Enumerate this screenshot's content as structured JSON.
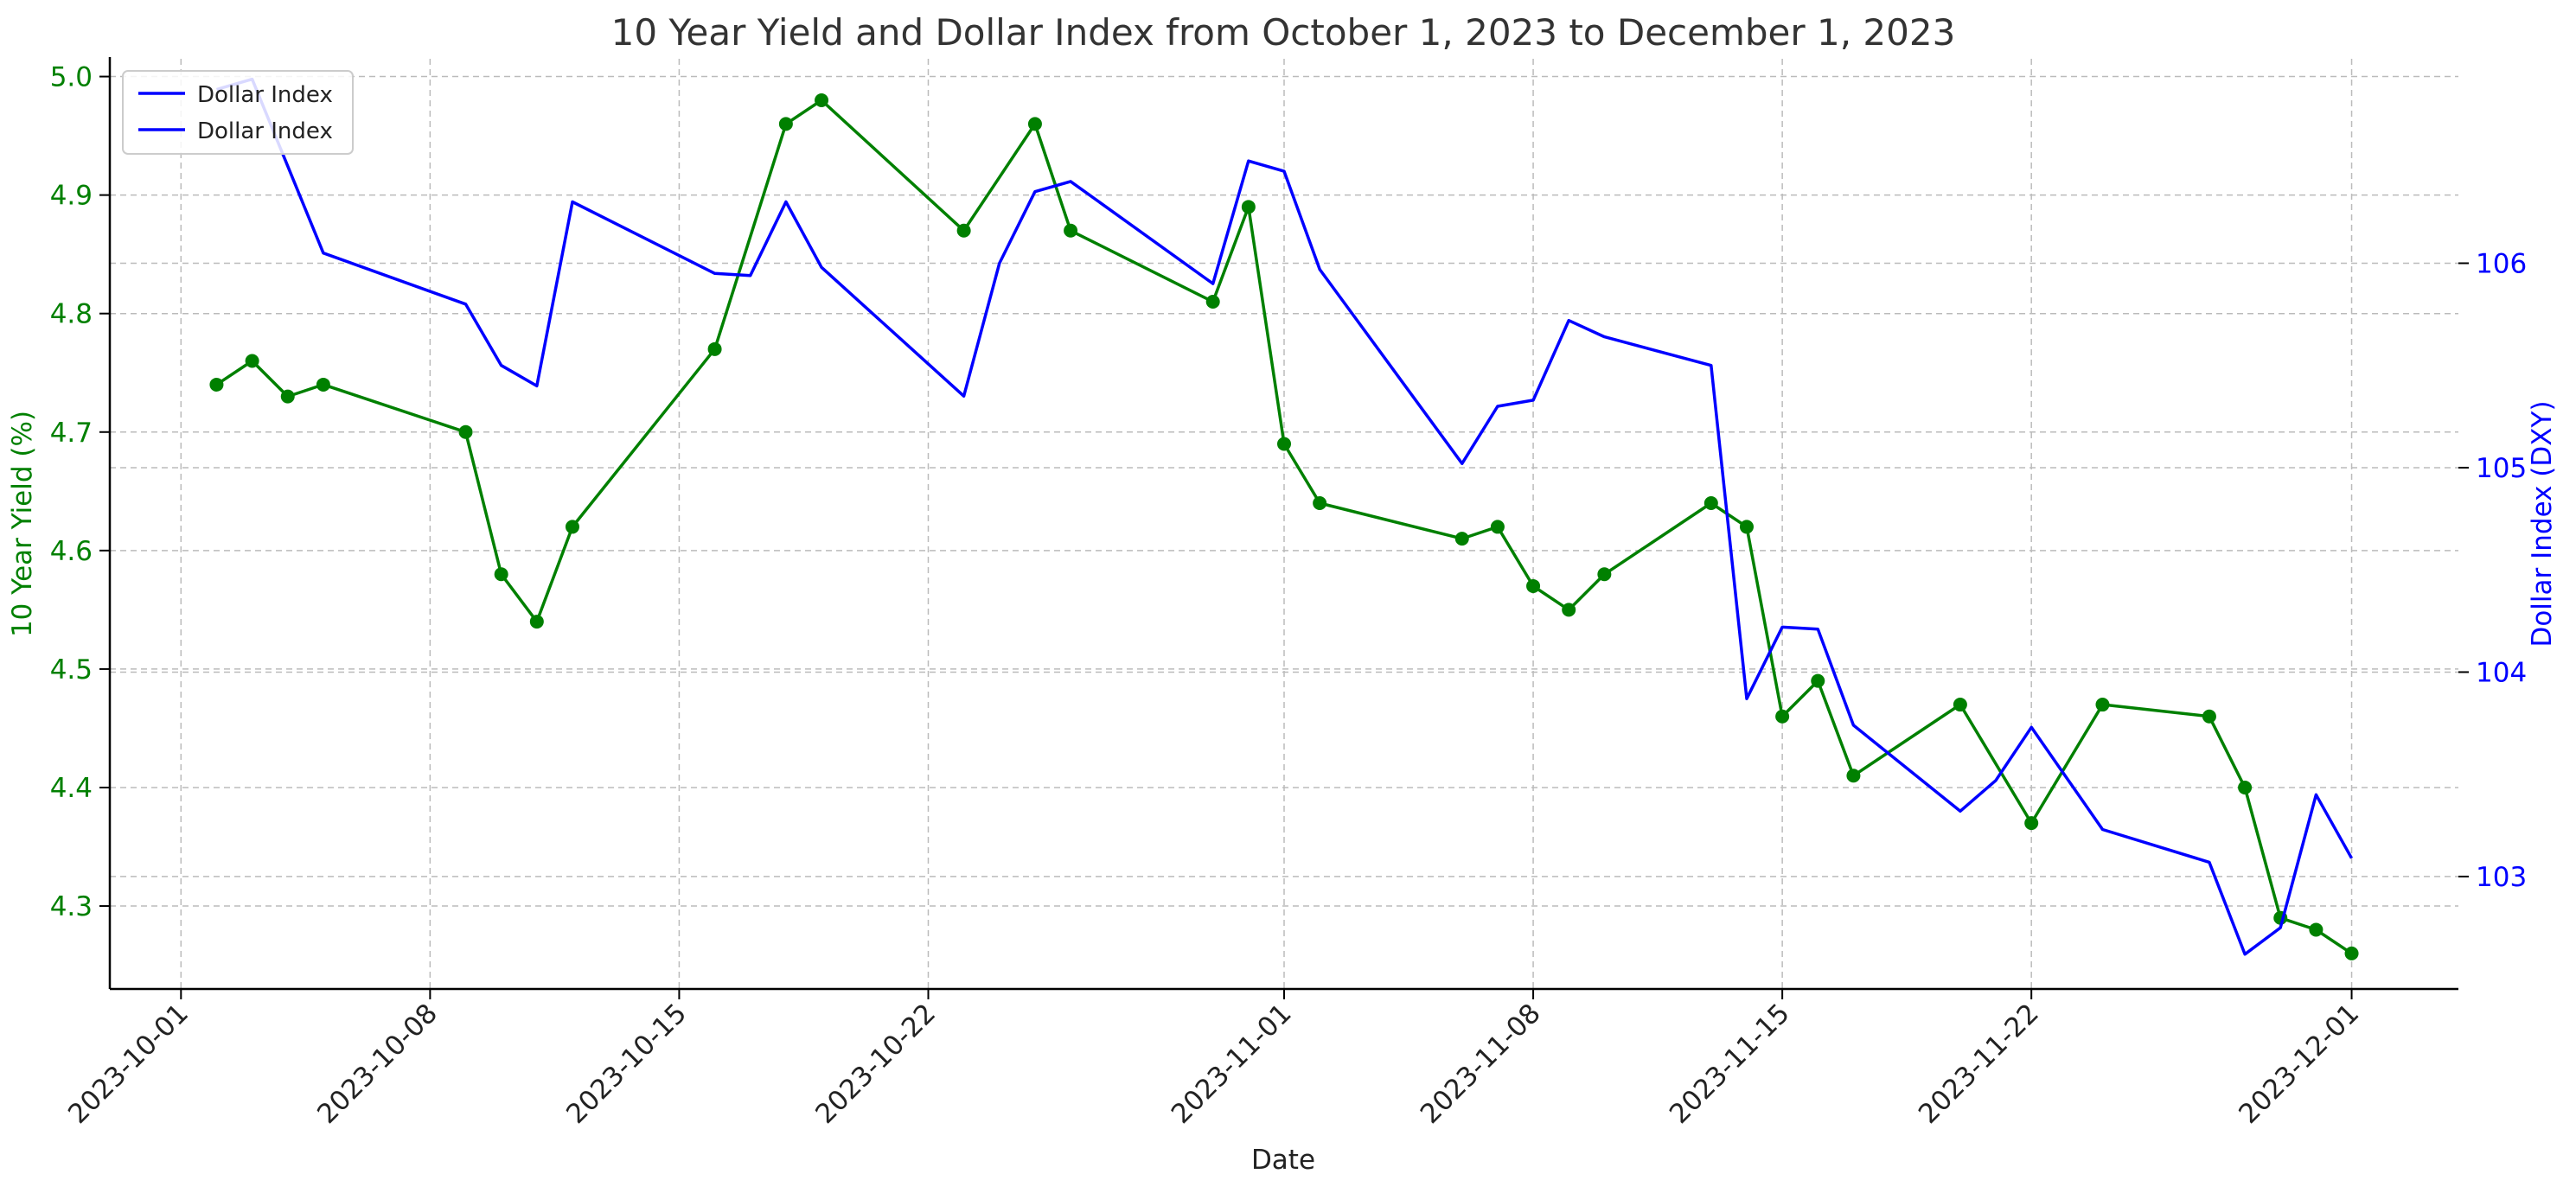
{
  "chart_data": {
    "type": "line",
    "title": "10 Year Yield and Dollar Index from October 1, 2023 to December 1, 2023",
    "xlabel": "Date",
    "ylabel_left": "10 Year Yield (%)",
    "ylabel_right": "Dollar Index (DXY)",
    "xlim": [
      "2023-09-29",
      "2023-12-04"
    ],
    "ylim_left": [
      4.23,
      5.015
    ],
    "ylim_right": [
      102.45,
      107.0
    ],
    "x_ticks": [
      "2023-10-01",
      "2023-10-08",
      "2023-10-15",
      "2023-10-22",
      "2023-11-01",
      "2023-11-08",
      "2023-11-15",
      "2023-11-22",
      "2023-12-01"
    ],
    "y_ticks_left": [
      "4.3",
      "4.4",
      "4.5",
      "4.6",
      "4.7",
      "4.8",
      "4.9",
      "5.0"
    ],
    "y_ticks_right": [
      "103",
      "104",
      "105",
      "106"
    ],
    "grid": true,
    "legend_position": "top-left",
    "legend": [
      {
        "label": "Dollar Index",
        "color": "#0000ff"
      },
      {
        "label": "Dollar Index",
        "color": "#0000ff"
      }
    ],
    "series": [
      {
        "axis": "left",
        "color": "#008000",
        "marker": "circle",
        "x": [
          "2023-10-02",
          "2023-10-03",
          "2023-10-04",
          "2023-10-05",
          "2023-10-09",
          "2023-10-10",
          "2023-10-11",
          "2023-10-12",
          "2023-10-16",
          "2023-10-18",
          "2023-10-19",
          "2023-10-23",
          "2023-10-25",
          "2023-10-26",
          "2023-10-30",
          "2023-10-31",
          "2023-11-01",
          "2023-11-02",
          "2023-11-06",
          "2023-11-07",
          "2023-11-08",
          "2023-11-09",
          "2023-11-10",
          "2023-11-13",
          "2023-11-14",
          "2023-11-15",
          "2023-11-16",
          "2023-11-17",
          "2023-11-20",
          "2023-11-22",
          "2023-11-24",
          "2023-11-27",
          "2023-11-28",
          "2023-11-29",
          "2023-11-30",
          "2023-12-01"
        ],
        "values": [
          4.74,
          4.76,
          4.73,
          4.74,
          4.7,
          4.58,
          4.54,
          4.62,
          4.77,
          4.96,
          4.98,
          4.87,
          4.96,
          4.87,
          4.81,
          4.89,
          4.69,
          4.64,
          4.61,
          4.62,
          4.57,
          4.55,
          4.58,
          4.64,
          4.62,
          4.46,
          4.49,
          4.41,
          4.47,
          4.37,
          4.47,
          4.46,
          4.4,
          4.29,
          4.28,
          4.26
        ]
      },
      {
        "axis": "right",
        "color": "#0000ff",
        "marker": "none",
        "x": [
          "2023-10-02",
          "2023-10-03",
          "2023-10-05",
          "2023-10-09",
          "2023-10-10",
          "2023-10-11",
          "2023-10-12",
          "2023-10-16",
          "2023-10-17",
          "2023-10-18",
          "2023-10-19",
          "2023-10-23",
          "2023-10-24",
          "2023-10-25",
          "2023-10-26",
          "2023-10-30",
          "2023-10-31",
          "2023-11-01",
          "2023-11-02",
          "2023-11-06",
          "2023-11-07",
          "2023-11-08",
          "2023-11-09",
          "2023-11-10",
          "2023-11-13",
          "2023-11-14",
          "2023-11-15",
          "2023-11-16",
          "2023-11-17",
          "2023-11-20",
          "2023-11-21",
          "2023-11-22",
          "2023-11-24",
          "2023-11-27",
          "2023-11-28",
          "2023-11-29",
          "2023-11-30",
          "2023-12-01"
        ],
        "values": [
          106.85,
          106.9,
          106.05,
          105.8,
          105.5,
          105.4,
          106.3,
          105.95,
          105.94,
          106.3,
          105.98,
          105.35,
          106.0,
          106.35,
          106.4,
          105.9,
          106.5,
          106.45,
          105.97,
          105.02,
          105.3,
          105.33,
          105.72,
          105.64,
          105.5,
          103.87,
          104.22,
          104.21,
          103.74,
          103.32,
          103.47,
          103.73,
          103.23,
          103.07,
          102.62,
          102.75,
          103.4,
          103.09
        ]
      }
    ]
  }
}
